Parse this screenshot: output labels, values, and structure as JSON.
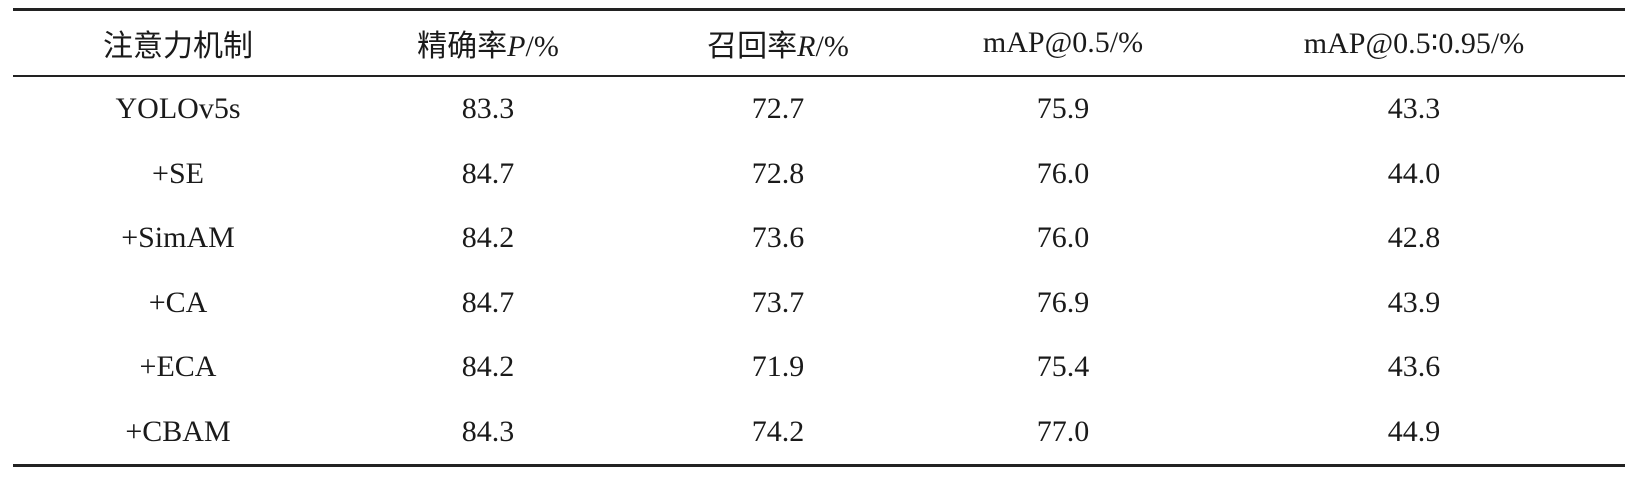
{
  "table": {
    "headers": [
      {
        "prefix": "注意力机制",
        "var": "",
        "suffix": ""
      },
      {
        "prefix": "精确率",
        "var": "P",
        "suffix": "/%"
      },
      {
        "prefix": "召回率",
        "var": "R",
        "suffix": "/%"
      },
      {
        "prefix": "mAP@0.5/%",
        "var": "",
        "suffix": ""
      },
      {
        "prefix": "mAP@0.5∶0.95/%",
        "var": "",
        "suffix": ""
      }
    ],
    "rows": [
      [
        "YOLOv5s",
        "83.3",
        "72.7",
        "75.9",
        "43.3"
      ],
      [
        "+SE",
        "84.7",
        "72.8",
        "76.0",
        "44.0"
      ],
      [
        "+SimAM",
        "84.2",
        "73.6",
        "76.0",
        "42.8"
      ],
      [
        "+CA",
        "84.7",
        "73.7",
        "76.9",
        "43.9"
      ],
      [
        "+ECA",
        "84.2",
        "71.9",
        "75.4",
        "43.6"
      ],
      [
        "+CBAM",
        "84.3",
        "74.2",
        "77.0",
        "44.9"
      ]
    ]
  }
}
